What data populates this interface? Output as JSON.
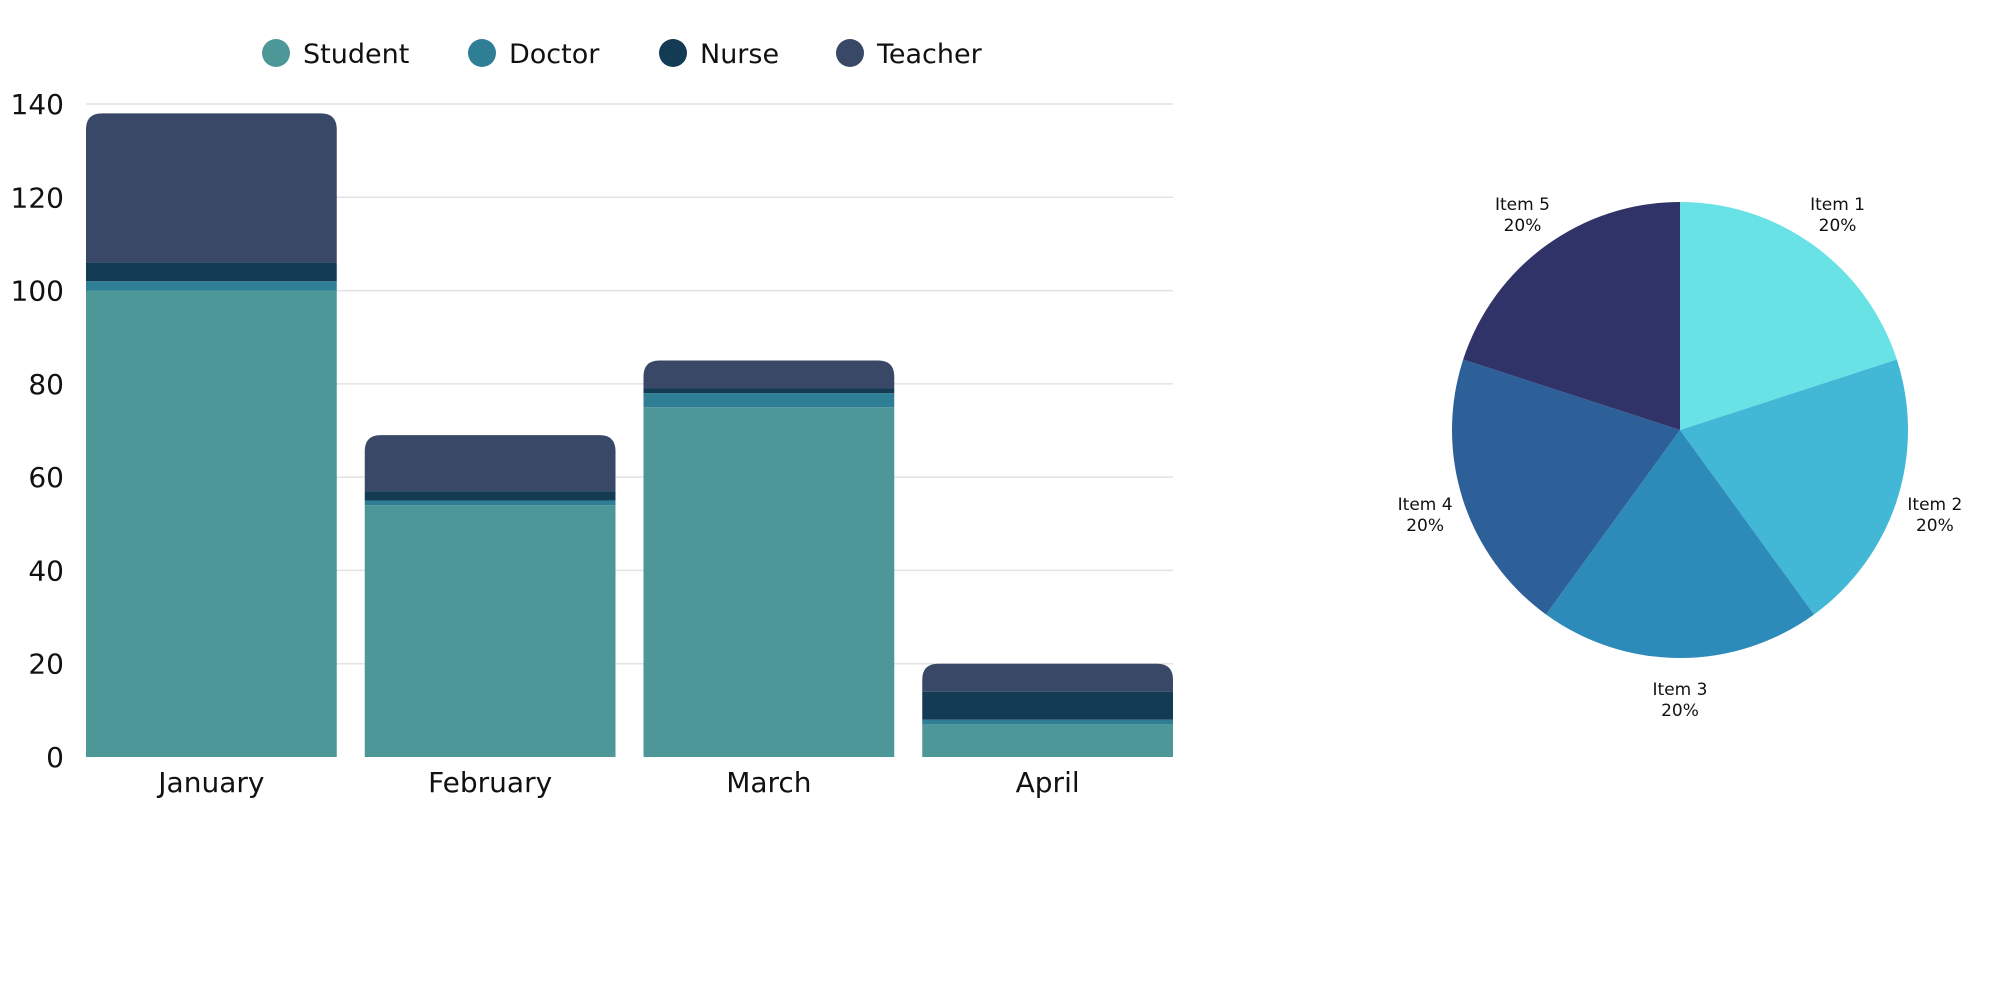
{
  "chart_data": [
    {
      "type": "bar",
      "stacked": true,
      "categories": [
        "January",
        "February",
        "March",
        "April"
      ],
      "series": [
        {
          "name": "Student",
          "values": [
            100,
            54,
            75,
            7
          ],
          "color": "#4e9799"
        },
        {
          "name": "Doctor",
          "values": [
            2,
            1,
            3,
            1
          ],
          "color": "#2e7f96"
        },
        {
          "name": "Nurse",
          "values": [
            4,
            2,
            1,
            6
          ],
          "color": "#133b54"
        },
        {
          "name": "Teacher",
          "values": [
            32,
            12,
            6,
            6
          ],
          "color": "#394866"
        }
      ],
      "ylim": [
        0,
        140
      ],
      "yticks": [
        0,
        20,
        40,
        60,
        80,
        100,
        120,
        140
      ],
      "grid": true,
      "legend": "top"
    },
    {
      "type": "pie",
      "slices": [
        {
          "label": "Item 1",
          "value": 20,
          "percent": "20%",
          "color": "#69e2e6"
        },
        {
          "label": "Item 2",
          "value": 20,
          "percent": "20%",
          "color": "#42b8d6"
        },
        {
          "label": "Item 3",
          "value": 20,
          "percent": "20%",
          "color": "#2d8bba"
        },
        {
          "label": "Item 4",
          "value": 20,
          "percent": "20%",
          "color": "#2d5f98"
        },
        {
          "label": "Item 5",
          "value": 20,
          "percent": "20%",
          "color": "#303368"
        }
      ]
    }
  ]
}
